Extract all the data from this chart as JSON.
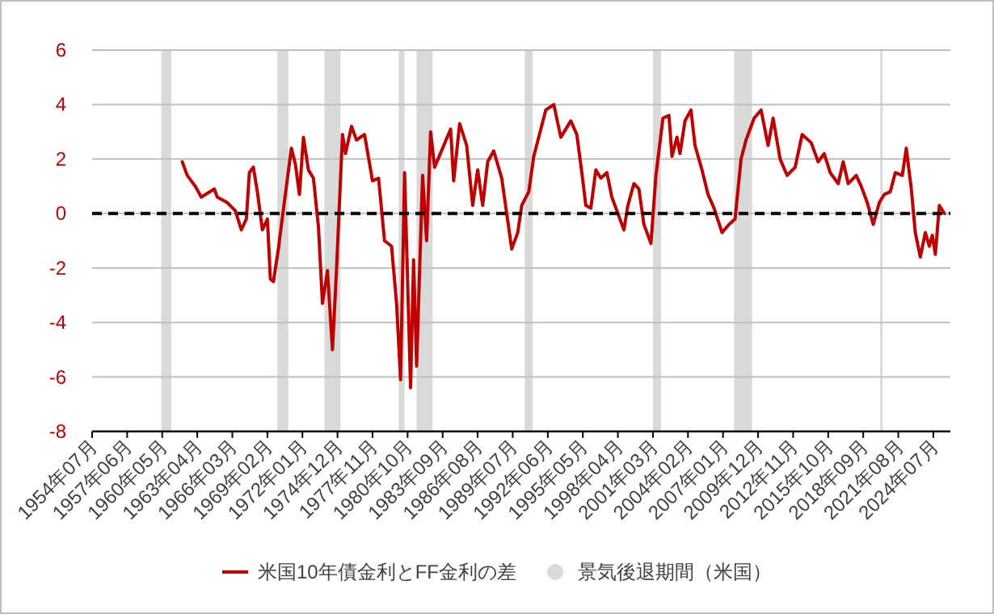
{
  "chart_data": {
    "type": "line",
    "xlim": [
      "1954-07",
      "2025-12"
    ],
    "ylim": [
      -8,
      6
    ],
    "yticks": [
      -8,
      -6,
      -4,
      -2,
      0,
      2,
      4,
      6
    ],
    "grid": "y",
    "legend": "bottom",
    "line_style": "solid",
    "marker": "none",
    "xticks": [
      {
        "value": "1954-07",
        "label": "1954年07月"
      },
      {
        "value": "1957-06",
        "label": "1957年06月"
      },
      {
        "value": "1960-05",
        "label": "1960年05月"
      },
      {
        "value": "1963-04",
        "label": "1963年04月"
      },
      {
        "value": "1966-03",
        "label": "1966年03月"
      },
      {
        "value": "1969-02",
        "label": "1969年02月"
      },
      {
        "value": "1972-01",
        "label": "1972年01月"
      },
      {
        "value": "1974-12",
        "label": "1974年12月"
      },
      {
        "value": "1977-11",
        "label": "1977年11月"
      },
      {
        "value": "1980-10",
        "label": "1980年10月"
      },
      {
        "value": "1983-09",
        "label": "1983年09月"
      },
      {
        "value": "1986-08",
        "label": "1986年08月"
      },
      {
        "value": "1989-07",
        "label": "1989年07月"
      },
      {
        "value": "1992-06",
        "label": "1992年06月"
      },
      {
        "value": "1995-05",
        "label": "1995年05月"
      },
      {
        "value": "1998-04",
        "label": "1998年04月"
      },
      {
        "value": "2001-03",
        "label": "2001年03月"
      },
      {
        "value": "2004-02",
        "label": "2004年02月"
      },
      {
        "value": "2007-01",
        "label": "2007年01月"
      },
      {
        "value": "2009-12",
        "label": "2009年12月"
      },
      {
        "value": "2012-11",
        "label": "2012年11月"
      },
      {
        "value": "2015-10",
        "label": "2015年10月"
      },
      {
        "value": "2018-09",
        "label": "2018年09月"
      },
      {
        "value": "2021-08",
        "label": "2021年08月"
      },
      {
        "value": "2024-07",
        "label": "2024年07月"
      }
    ],
    "ref_lines": [
      {
        "axis": "y",
        "value": 0,
        "color": "#000000",
        "line_style": "dashed"
      }
    ],
    "bands": [
      {
        "axis": "x",
        "from": "1960-04",
        "to": "1961-02",
        "color": "#d9d9d9",
        "label": "景気後退期間（米国）"
      },
      {
        "axis": "x",
        "from": "1969-12",
        "to": "1970-11",
        "color": "#d9d9d9"
      },
      {
        "axis": "x",
        "from": "1973-11",
        "to": "1975-03",
        "color": "#d9d9d9"
      },
      {
        "axis": "x",
        "from": "1980-01",
        "to": "1980-07",
        "color": "#d9d9d9"
      },
      {
        "axis": "x",
        "from": "1981-07",
        "to": "1982-11",
        "color": "#d9d9d9"
      },
      {
        "axis": "x",
        "from": "1990-07",
        "to": "1991-03",
        "color": "#d9d9d9"
      },
      {
        "axis": "x",
        "from": "2001-03",
        "to": "2001-11",
        "color": "#d9d9d9"
      },
      {
        "axis": "x",
        "from": "2007-12",
        "to": "2009-06",
        "color": "#d9d9d9"
      },
      {
        "axis": "x",
        "from": "2020-02",
        "to": "2020-04",
        "color": "#d9d9d9"
      }
    ],
    "series": [
      {
        "name": "米国10年債金利とFF金利の差",
        "color": "#c00000",
        "x": [
          "1962-01",
          "1962-06",
          "1963-02",
          "1963-08",
          "1964-09",
          "1964-12",
          "1965-10",
          "1966-06",
          "1966-12",
          "1967-05",
          "1967-08",
          "1967-12",
          "1968-04",
          "1968-09",
          "1969-02",
          "1969-05",
          "1969-08",
          "1970-01",
          "1970-03",
          "1970-09",
          "1971-02",
          "1971-06",
          "1971-10",
          "1972-02",
          "1972-07",
          "1972-12",
          "1973-05",
          "1973-09",
          "1974-02",
          "1974-07",
          "1974-11",
          "1975-05",
          "1975-08",
          "1976-02",
          "1976-07",
          "1977-03",
          "1977-11",
          "1978-05",
          "1978-11",
          "1979-06",
          "1979-11",
          "1980-03",
          "1980-07",
          "1981-01",
          "1981-04",
          "1981-07",
          "1982-01",
          "1982-05",
          "1982-09",
          "1983-01",
          "1983-09",
          "1984-05",
          "1984-08",
          "1985-02",
          "1985-09",
          "1986-03",
          "1986-08",
          "1987-01",
          "1987-06",
          "1987-12",
          "1988-08",
          "1989-01",
          "1989-06",
          "1989-12",
          "1990-04",
          "1990-11",
          "1991-04",
          "1992-04",
          "1992-12",
          "1993-07",
          "1994-05",
          "1994-11",
          "1995-04",
          "1995-08",
          "1996-01",
          "1996-06",
          "1996-11",
          "1997-05",
          "1997-10",
          "1998-03",
          "1998-10",
          "1999-02",
          "1999-08",
          "2000-01",
          "2000-06",
          "2001-01",
          "2001-06",
          "2002-01",
          "2002-07",
          "2002-10",
          "2003-03",
          "2003-06",
          "2003-11",
          "2004-05",
          "2004-09",
          "2005-04",
          "2005-10",
          "2006-04",
          "2006-12",
          "2007-07",
          "2008-01",
          "2008-07",
          "2008-12",
          "2009-08",
          "2010-03",
          "2010-10",
          "2011-03",
          "2011-10",
          "2012-05",
          "2013-01",
          "2013-08",
          "2014-05",
          "2014-12",
          "2015-06",
          "2015-12",
          "2016-08",
          "2017-01",
          "2017-06",
          "2018-02",
          "2018-07",
          "2019-01",
          "2019-07",
          "2020-01",
          "2020-06",
          "2020-12",
          "2021-05",
          "2021-12",
          "2022-04",
          "2022-09",
          "2023-01",
          "2023-06",
          "2023-11",
          "2024-03",
          "2024-06",
          "2024-09",
          "2025-01",
          "2025-06"
        ],
        "values": [
          1.9,
          1.4,
          1.0,
          0.6,
          0.9,
          0.6,
          0.4,
          0.1,
          -0.6,
          -0.2,
          1.5,
          1.7,
          0.8,
          -0.6,
          -0.2,
          -2.4,
          -2.5,
          -1.3,
          -0.7,
          1.0,
          2.4,
          1.8,
          0.7,
          2.8,
          1.6,
          1.3,
          -0.5,
          -3.3,
          -2.1,
          -5.0,
          -2.1,
          2.9,
          2.2,
          3.2,
          2.7,
          2.9,
          1.2,
          1.3,
          -1.0,
          -1.2,
          -3.3,
          -6.1,
          1.5,
          -6.4,
          -1.7,
          -5.6,
          1.4,
          -1.0,
          3.0,
          1.7,
          2.4,
          3.1,
          1.2,
          3.3,
          2.5,
          0.3,
          1.6,
          0.3,
          1.9,
          2.3,
          1.3,
          0.0,
          -1.3,
          -0.7,
          0.3,
          0.8,
          2.1,
          3.8,
          4.0,
          2.8,
          3.4,
          2.9,
          1.5,
          0.3,
          0.2,
          1.6,
          1.3,
          1.5,
          0.6,
          0.1,
          -0.6,
          0.3,
          1.1,
          0.9,
          -0.4,
          -1.1,
          1.4,
          3.5,
          3.6,
          2.1,
          2.8,
          2.2,
          3.4,
          3.8,
          2.5,
          1.6,
          0.7,
          0.2,
          -0.7,
          -0.4,
          -0.2,
          2.0,
          2.7,
          3.5,
          3.8,
          2.5,
          3.5,
          2.0,
          1.4,
          1.7,
          2.9,
          2.6,
          1.9,
          2.2,
          1.5,
          1.1,
          1.9,
          1.1,
          1.4,
          1.0,
          0.4,
          -0.4,
          0.4,
          0.7,
          0.8,
          1.5,
          1.4,
          2.4,
          0.9,
          -0.7,
          -1.6,
          -0.7,
          -1.2,
          -0.8,
          -1.5,
          0.3,
          0.0
        ]
      }
    ]
  }
}
